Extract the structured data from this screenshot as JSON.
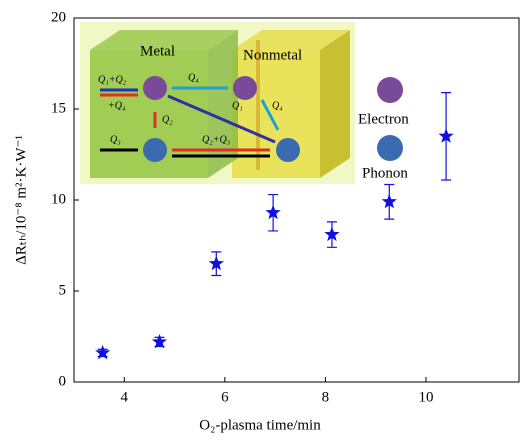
{
  "chart_data": {
    "type": "scatter",
    "xlabel": "O₂-plasma time/min",
    "ylabel": "ΔRₜₕ/10⁻⁸ m²·K·W⁻¹",
    "x": [
      3.57,
      4.7,
      5.83,
      6.96,
      8.13,
      9.27,
      10.4
    ],
    "series": [
      {
        "color": "#1010e0",
        "values": [
          1.6,
          2.2,
          6.5,
          9.3,
          8.1,
          9.9,
          13.5
        ],
        "errors": [
          0.2,
          0.25,
          0.65,
          1.0,
          0.7,
          0.95,
          2.4
        ]
      }
    ],
    "xlim": [
      3,
      11.85
    ],
    "xticks": [
      4,
      6,
      8,
      10
    ],
    "ylim": [
      0,
      20
    ],
    "yticks": [
      0,
      5,
      10,
      15,
      20
    ],
    "inset": {
      "metal": "Metal",
      "nonmetal": "Nonmetal",
      "electron": "Electron",
      "phonon": "Phonon",
      "q_labels": [
        "Q₁+Q₂",
        "+Q₄",
        "Q₄",
        "Q₁",
        "Q₄",
        "Q₂",
        "Q₃",
        "Q₂+Q₃"
      ]
    }
  }
}
